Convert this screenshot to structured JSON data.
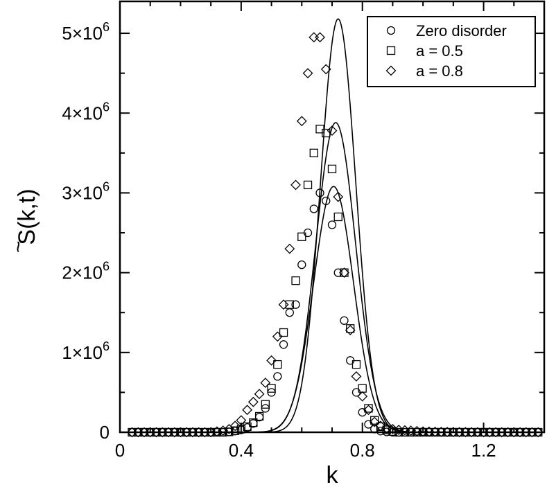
{
  "chart_data": {
    "type": "scatter",
    "xlabel": "k",
    "ylabel_main": "S(k,t)",
    "ylabel_accent": "~",
    "xlim": [
      0,
      1.4
    ],
    "ylim": [
      0,
      5400000
    ],
    "x_ticks": [
      {
        "value": 0,
        "label": "0"
      },
      {
        "value": 0.4,
        "label": "0.4"
      },
      {
        "value": 0.8,
        "label": "0.8"
      },
      {
        "value": 1.2,
        "label": "1.2"
      }
    ],
    "y_ticks": [
      {
        "value": 0,
        "mant": "0",
        "exp": ""
      },
      {
        "value": 1000000,
        "mant": "1×10",
        "exp": "6"
      },
      {
        "value": 2000000,
        "mant": "2×10",
        "exp": "6"
      },
      {
        "value": 3000000,
        "mant": "3×10",
        "exp": "6"
      },
      {
        "value": 4000000,
        "mant": "4×10",
        "exp": "6"
      },
      {
        "value": 5000000,
        "mant": "5×10",
        "exp": "6"
      }
    ],
    "legend_position": "top-right",
    "grid": false,
    "x": [
      0.04,
      0.06,
      0.08,
      0.1,
      0.12,
      0.14,
      0.16,
      0.18,
      0.2,
      0.22,
      0.24,
      0.26,
      0.28,
      0.3,
      0.32,
      0.34,
      0.36,
      0.38,
      0.4,
      0.42,
      0.44,
      0.46,
      0.48,
      0.5,
      0.52,
      0.54,
      0.56,
      0.58,
      0.6,
      0.62,
      0.64,
      0.66,
      0.68,
      0.7,
      0.72,
      0.74,
      0.76,
      0.78,
      0.8,
      0.82,
      0.84,
      0.86,
      0.88,
      0.9,
      0.92,
      0.94,
      0.96,
      0.98,
      1.0,
      1.02,
      1.04,
      1.06,
      1.08,
      1.1,
      1.12,
      1.14,
      1.16,
      1.18,
      1.2,
      1.22,
      1.24,
      1.26,
      1.28,
      1.3,
      1.32,
      1.34,
      1.36,
      1.38
    ],
    "series": [
      {
        "name": "Zero disorder",
        "marker": "circle",
        "values": [
          0,
          0,
          0,
          0,
          0,
          0,
          0,
          0,
          0,
          0,
          0,
          0,
          0,
          0,
          0,
          0,
          5000,
          15000,
          30000,
          60000,
          110000,
          190000,
          300000,
          500000,
          700000,
          1100000,
          1500000,
          1600000,
          2100000,
          2500000,
          2800000,
          3000000,
          2900000,
          2600000,
          2000000,
          1400000,
          900000,
          500000,
          250000,
          100000,
          40000,
          15000,
          5000,
          0,
          0,
          0,
          0,
          0,
          0,
          0,
          0,
          0,
          0,
          0,
          0,
          0,
          0,
          0,
          0,
          0,
          0,
          0,
          0,
          0,
          0,
          0,
          0,
          0
        ],
        "fit": {
          "amp": 3080000,
          "center": 0.705,
          "sigma": 0.066
        }
      },
      {
        "name": "a = 0.5",
        "marker": "square",
        "values": [
          0,
          0,
          0,
          0,
          0,
          0,
          0,
          0,
          0,
          0,
          0,
          0,
          0,
          0,
          0,
          0,
          5000,
          20000,
          40000,
          70000,
          120000,
          200000,
          350000,
          550000,
          850000,
          1250000,
          1600000,
          1900000,
          2450000,
          3100000,
          3500000,
          3800000,
          3750000,
          3300000,
          2700000,
          2000000,
          1300000,
          850000,
          550000,
          300000,
          150000,
          70000,
          30000,
          10000,
          0,
          0,
          0,
          0,
          0,
          0,
          0,
          0,
          0,
          0,
          0,
          0,
          0,
          0,
          0,
          0,
          0,
          0,
          0,
          0,
          0,
          0,
          0,
          0
        ],
        "fit": {
          "amp": 3880000,
          "center": 0.712,
          "sigma": 0.066
        }
      },
      {
        "name": "a = 0.8",
        "marker": "diamond",
        "values": [
          0,
          0,
          0,
          0,
          0,
          0,
          0,
          0,
          0,
          0,
          0,
          0,
          0,
          0,
          10000,
          20000,
          40000,
          80000,
          150000,
          280000,
          380000,
          480000,
          620000,
          900000,
          1200000,
          1600000,
          2300000,
          3100000,
          3900000,
          4500000,
          4950000,
          4950000,
          4550000,
          3780000,
          2950000,
          2000000,
          1280000,
          700000,
          450000,
          280000,
          130000,
          80000,
          50000,
          40000,
          30000,
          25000,
          20000,
          15000,
          10000,
          8000,
          6000,
          5000,
          4000,
          3000,
          2000,
          2000,
          1000,
          1000,
          0,
          0,
          0,
          0,
          0,
          0,
          0,
          0,
          0,
          0
        ],
        "fit": {
          "amp": 5180000,
          "center": 0.72,
          "sigma": 0.058
        }
      }
    ]
  }
}
